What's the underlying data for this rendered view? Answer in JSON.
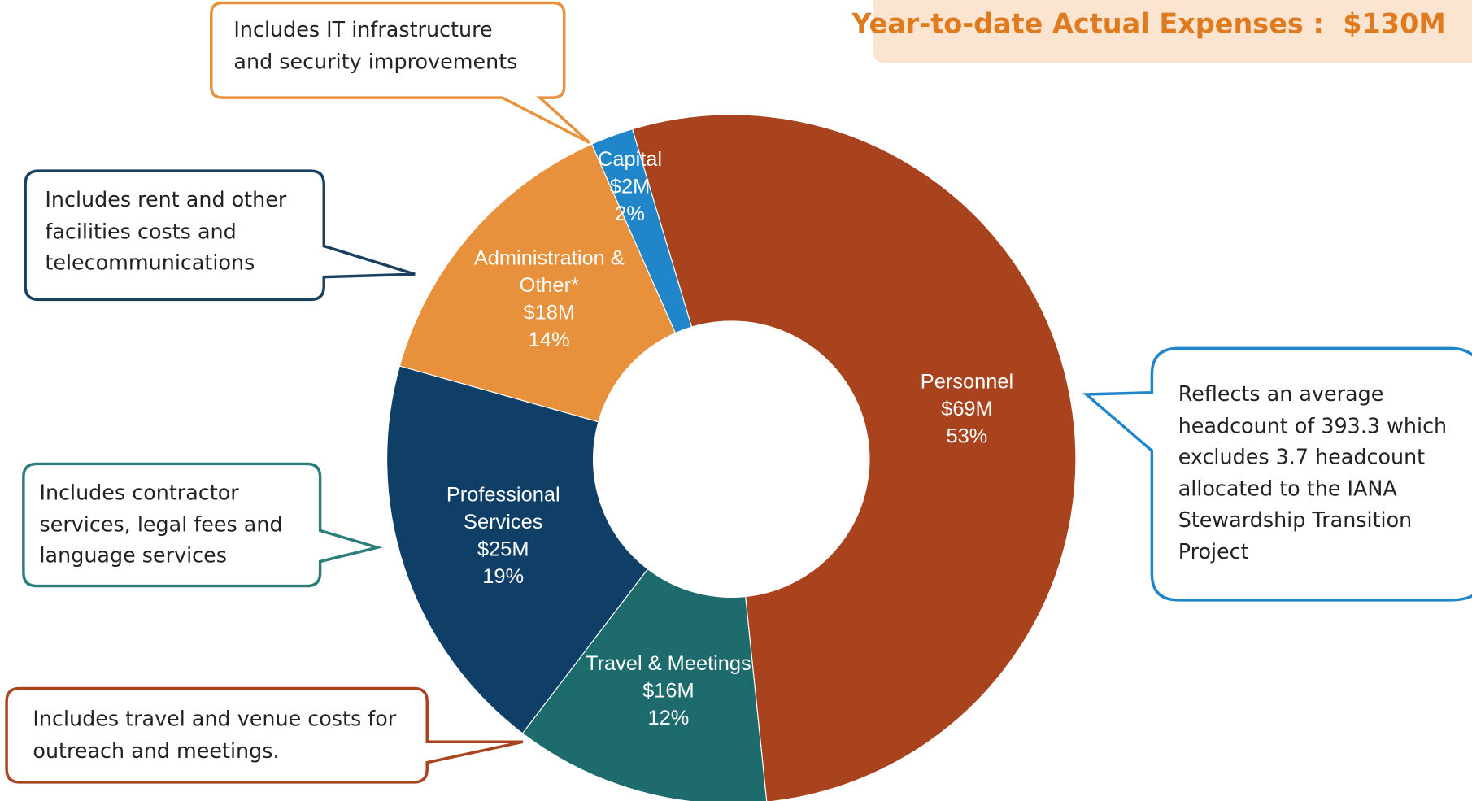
{
  "chart_data": {
    "type": "donut",
    "title": "Year-to-date Actual Expenses :  $130M",
    "categories": [
      "Personnel",
      "Travel & Meetings",
      "Professional Services",
      "Administration & Other*",
      "Capital"
    ],
    "values": [
      53,
      12,
      19,
      14,
      2
    ],
    "value_labels": [
      "53%",
      "12%",
      "19%",
      "14%",
      "2%"
    ],
    "amount_labels": [
      "$69M",
      "$16M",
      "$25M",
      "$18M",
      "$2M"
    ],
    "colors": [
      "#a8431e",
      "#1e6b6e",
      "#0f3f66",
      "#e8913c",
      "#2185c9"
    ]
  },
  "callouts": [
    {
      "lines": [
        "Includes IT infrastructure",
        "and security improvements"
      ]
    },
    {
      "lines": [
        "Includes rent and other",
        "facilities costs and",
        "telecommunications"
      ]
    },
    {
      "lines": [
        "Includes contractor",
        "services, legal fees and",
        "language services"
      ]
    },
    {
      "lines": [
        "Includes travel and venue costs for",
        "outreach and meetings."
      ]
    },
    {
      "lines": [
        "Reflects an average",
        "headcount of 393.3 which",
        "excludes 3.7 headcount",
        "allocated to the IANA",
        "Stewardship Transition",
        "Project"
      ]
    }
  ]
}
